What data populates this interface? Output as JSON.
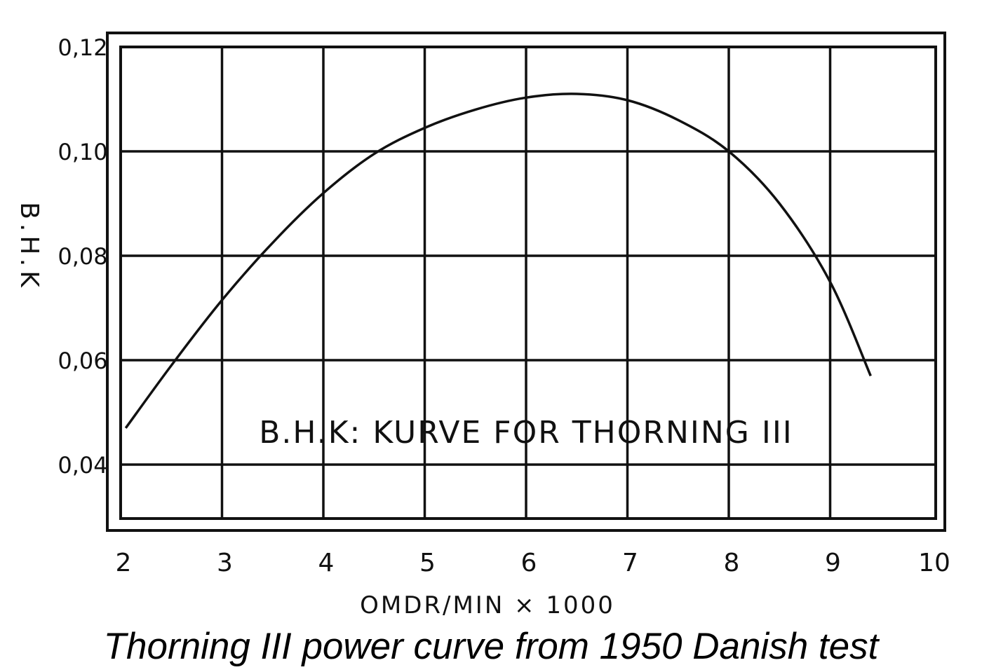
{
  "chart_data": {
    "type": "line",
    "title": "",
    "annotation": "B.H.K: KURVE FOR THORNING III",
    "xlabel": "OMDR/MIN × 1000",
    "ylabel": "B.H.K",
    "xlim": [
      2,
      10
    ],
    "ylim": [
      0.03,
      0.12
    ],
    "x_ticks": [
      "2",
      "3",
      "4",
      "5",
      "6",
      "7",
      "8",
      "9",
      "10"
    ],
    "y_ticks": [
      "0,04",
      "0,06",
      "0,08",
      "0,10",
      "0,12"
    ],
    "grid": true,
    "series": [
      {
        "x": [
          2.05,
          2.5,
          3.0,
          3.5,
          4.0,
          4.5,
          5.0,
          5.5,
          6.0,
          6.5,
          7.0,
          7.5,
          8.0,
          8.5,
          9.0,
          9.4
        ],
        "values": [
          0.047,
          0.059,
          0.0715,
          0.0825,
          0.092,
          0.0995,
          0.1045,
          0.108,
          0.1103,
          0.111,
          0.1098,
          0.106,
          0.1,
          0.09,
          0.075,
          0.057
        ]
      }
    ]
  },
  "caption": "Thorning III power curve from 1950 Danish test"
}
